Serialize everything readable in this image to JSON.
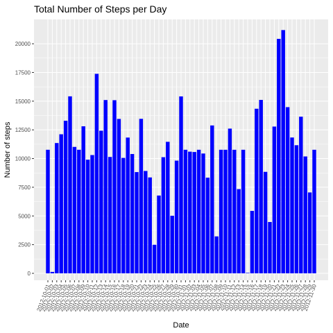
{
  "chart_data": {
    "type": "bar",
    "title": "Total Number of Steps per Day",
    "xlabel": "Date",
    "ylabel": "Number of steps",
    "ylim": [
      0,
      22000
    ],
    "yticks": [
      0,
      2500,
      5000,
      7500,
      10000,
      12500,
      15000,
      17500,
      20000
    ],
    "grid": true,
    "bar_color": "#0000ff",
    "panel_color": "#ebebeb",
    "categories": [
      "2012-10-01",
      "2012-10-02",
      "2012-10-03",
      "2012-10-04",
      "2012-10-05",
      "2012-10-06",
      "2012-10-07",
      "2012-10-08",
      "2012-10-09",
      "2012-10-10",
      "2012-10-11",
      "2012-10-12",
      "2012-10-13",
      "2012-10-14",
      "2012-10-15",
      "2012-10-16",
      "2012-10-17",
      "2012-10-18",
      "2012-10-19",
      "2012-10-20",
      "2012-10-21",
      "2012-10-22",
      "2012-10-23",
      "2012-10-24",
      "2012-10-25",
      "2012-10-26",
      "2012-10-27",
      "2012-10-28",
      "2012-10-29",
      "2012-10-30",
      "2012-10-31",
      "2012-11-01",
      "2012-11-02",
      "2012-11-03",
      "2012-11-04",
      "2012-11-05",
      "2012-11-06",
      "2012-11-07",
      "2012-11-08",
      "2012-11-09",
      "2012-11-10",
      "2012-11-11",
      "2012-11-12",
      "2012-11-13",
      "2012-11-14",
      "2012-11-15",
      "2012-11-16",
      "2012-11-17",
      "2012-11-18",
      "2012-11-19",
      "2012-11-20",
      "2012-11-21",
      "2012-11-22",
      "2012-11-23",
      "2012-11-24",
      "2012-11-25",
      "2012-11-26",
      "2012-11-27",
      "2012-11-28",
      "2012-11-29",
      "2012-11-30"
    ],
    "values": [
      10766,
      126,
      11352,
      12116,
      13294,
      15420,
      11015,
      10766,
      12811,
      9900,
      10304,
      17382,
      12426,
      15098,
      10139,
      15084,
      13452,
      10056,
      11829,
      10395,
      8821,
      13460,
      8918,
      8355,
      2492,
      6778,
      10119,
      11458,
      5018,
      9819,
      15414,
      10766,
      10600,
      10571,
      10766,
      10439,
      8334,
      12883,
      3219,
      10766,
      10766,
      12608,
      10765,
      7336,
      10766,
      41,
      5441,
      14339,
      15110,
      8841,
      4472,
      12787,
      20427,
      21194,
      14478,
      11834,
      11162,
      13646,
      10183,
      7047,
      10766
    ]
  }
}
